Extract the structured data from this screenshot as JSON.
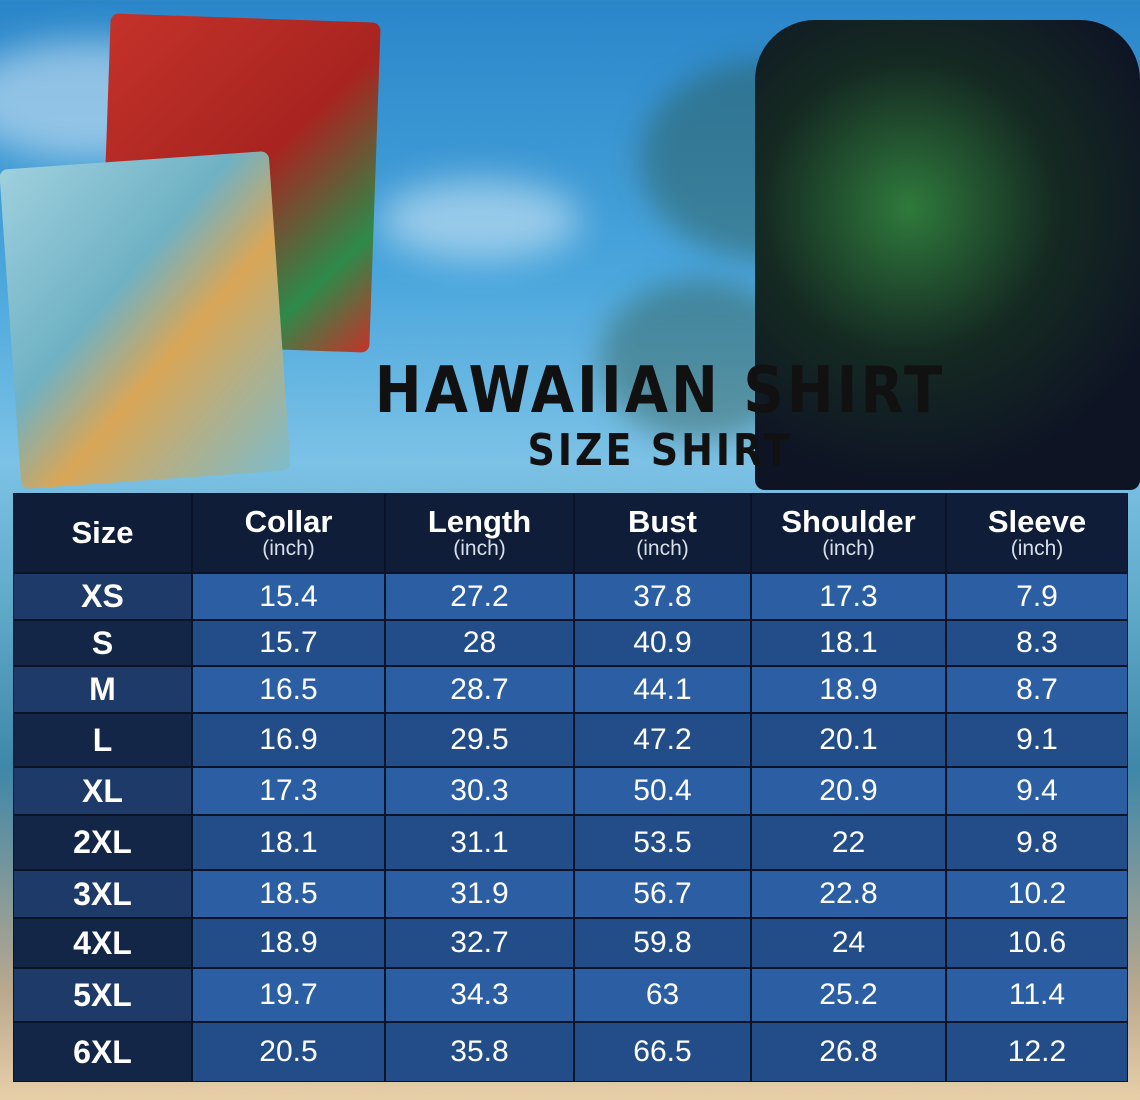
{
  "title": "HAWAIIAN SHIRT",
  "subtitle": "SIZE SHIRT",
  "colors": {
    "header_bg": "#0f1d38",
    "row_light": "#2b5ea3",
    "row_dark": "#234d89",
    "size_light": "#1d3a68",
    "size_dark": "#132647"
  },
  "table": {
    "headers": [
      {
        "label": "Size",
        "unit": ""
      },
      {
        "label": "Collar",
        "unit": "(inch)"
      },
      {
        "label": "Length",
        "unit": "(inch)"
      },
      {
        "label": "Bust",
        "unit": "(inch)"
      },
      {
        "label": "Shoulder",
        "unit": "(inch)"
      },
      {
        "label": "Sleeve",
        "unit": "(inch)"
      }
    ],
    "rows": [
      [
        "XS",
        "15.4",
        "27.2",
        "37.8",
        "17.3",
        "7.9"
      ],
      [
        "S",
        "15.7",
        "28",
        "40.9",
        "18.1",
        "8.3"
      ],
      [
        "M",
        "16.5",
        "28.7",
        "44.1",
        "18.9",
        "8.7"
      ],
      [
        "L",
        "16.9",
        "29.5",
        "47.2",
        "20.1",
        "9.1"
      ],
      [
        "XL",
        "17.3",
        "30.3",
        "50.4",
        "20.9",
        "9.4"
      ],
      [
        "2XL",
        "18.1",
        "31.1",
        "53.5",
        "22",
        "9.8"
      ],
      [
        "3XL",
        "18.5",
        "31.9",
        "56.7",
        "22.8",
        "10.2"
      ],
      [
        "4XL",
        "18.9",
        "32.7",
        "59.8",
        "24",
        "10.6"
      ],
      [
        "5XL",
        "19.7",
        "34.3",
        "63",
        "25.2",
        "11.4"
      ],
      [
        "6XL",
        "20.5",
        "35.8",
        "66.5",
        "26.8",
        "12.2"
      ]
    ]
  }
}
